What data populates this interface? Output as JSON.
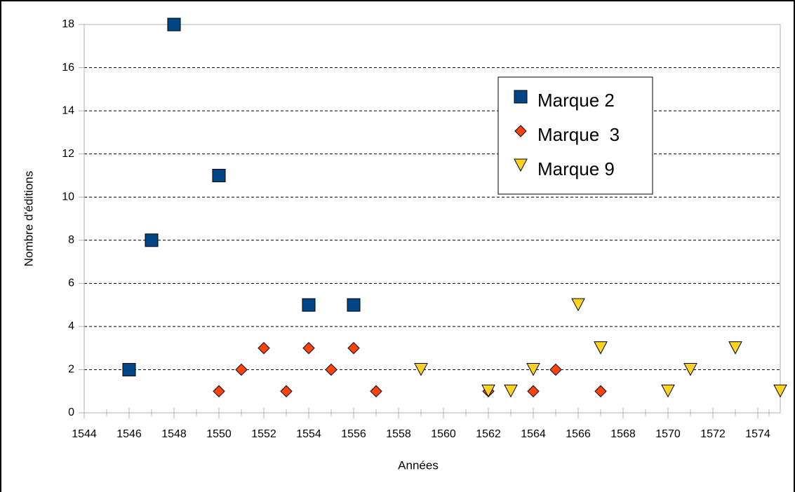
{
  "chart_data": {
    "type": "scatter",
    "xlabel": "Années",
    "ylabel": "Nombre d'éditions",
    "xlim": [
      1544,
      1575
    ],
    "xticks": [
      1544,
      1546,
      1548,
      1550,
      1552,
      1554,
      1556,
      1558,
      1560,
      1562,
      1564,
      1566,
      1568,
      1570,
      1572,
      1574
    ],
    "ylim": [
      0,
      18
    ],
    "yticks": [
      0,
      2,
      4,
      6,
      8,
      10,
      12,
      14,
      16,
      18
    ],
    "grid": true,
    "legend_position": "upper right",
    "series": [
      {
        "name": "Marque 2",
        "color": "#004586",
        "marker": "square",
        "x": [
          1546,
          1547,
          1548,
          1550,
          1554,
          1556
        ],
        "values": [
          2,
          8,
          18,
          11,
          5,
          5
        ]
      },
      {
        "name": "Marque  3",
        "color": "#ff420e",
        "marker": "diamond",
        "x": [
          1550,
          1551,
          1552,
          1553,
          1554,
          1555,
          1556,
          1557,
          1562,
          1564,
          1565,
          1567
        ],
        "values": [
          1,
          2,
          3,
          1,
          3,
          2,
          3,
          1,
          1,
          1,
          2,
          1
        ]
      },
      {
        "name": "Marque 9",
        "color": "#ffd320",
        "marker": "triangle-down",
        "x": [
          1559,
          1562,
          1563,
          1564,
          1566,
          1567,
          1570,
          1571,
          1573,
          1575
        ],
        "values": [
          2,
          1,
          1,
          2,
          5,
          3,
          1,
          2,
          3,
          1
        ]
      }
    ]
  }
}
